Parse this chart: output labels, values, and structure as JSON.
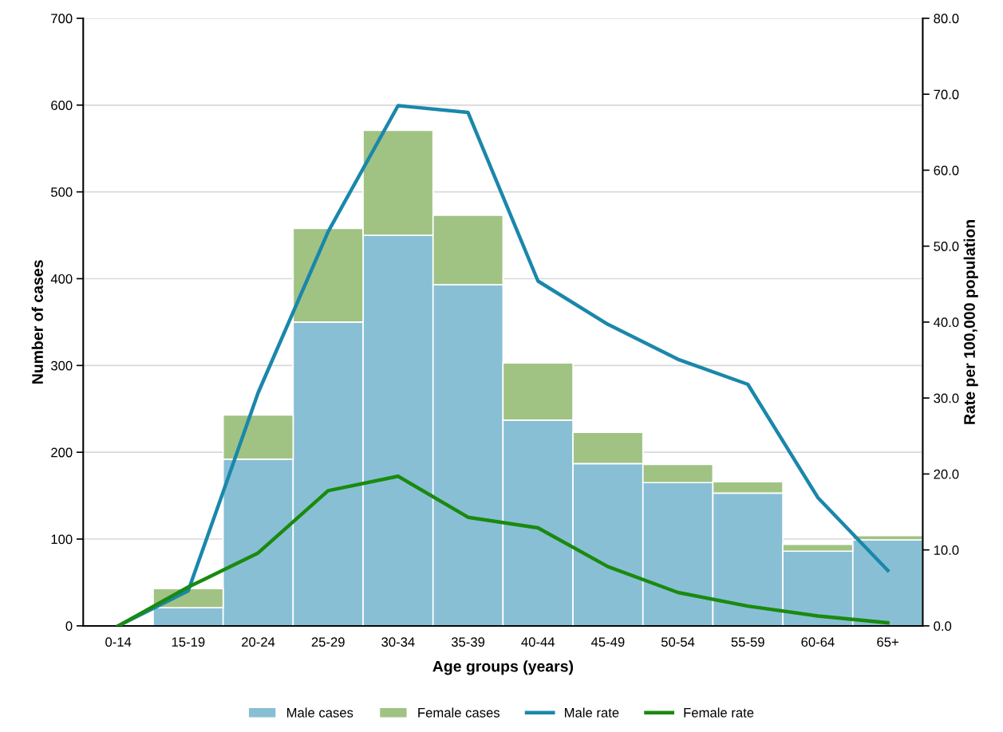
{
  "chart_data": {
    "type": "bar",
    "stacked": true,
    "xlabel": "Age groups (years)",
    "ylabel": "Number of cases",
    "y2label": "Rate per 100,000 population",
    "categories": [
      "0-14",
      "15-19",
      "20-24",
      "25-29",
      "30-34",
      "35-39",
      "40-44",
      "45-49",
      "50-54",
      "55-59",
      "60-64",
      "65+"
    ],
    "series": [
      {
        "name": "Male cases",
        "color": "#89bfd4",
        "values": [
          0,
          21,
          192,
          350,
          450,
          393,
          237,
          187,
          165,
          153,
          86,
          99
        ]
      },
      {
        "name": "Female cases",
        "color": "#a0c384",
        "values": [
          0,
          22,
          51,
          108,
          121,
          80,
          66,
          36,
          21,
          13,
          8,
          5
        ]
      },
      {
        "name": "Male rate",
        "type": "line",
        "axis": "y2",
        "color": "#1a87ab",
        "values": [
          0,
          4.6,
          30.7,
          51.9,
          68.5,
          67.6,
          45.4,
          39.7,
          35.1,
          31.8,
          16.9,
          7.3
        ]
      },
      {
        "name": "Female rate",
        "type": "line",
        "axis": "y2",
        "color": "#1a8a0f",
        "values": [
          0,
          5.1,
          9.6,
          17.8,
          19.7,
          14.3,
          12.9,
          7.8,
          4.4,
          2.6,
          1.3,
          0.4
        ]
      }
    ],
    "ylim": [
      0,
      700
    ],
    "yticks": [
      0,
      100,
      200,
      300,
      400,
      500,
      600,
      700
    ],
    "y2lim": [
      0,
      80
    ],
    "y2ticks": [
      {
        "value": 0,
        "label": "0.0"
      },
      {
        "value": 10,
        "label": "10.0"
      },
      {
        "value": 20,
        "label": "20.0"
      },
      {
        "value": 30,
        "label": "30.0"
      },
      {
        "value": 40,
        "label": "40.0"
      },
      {
        "value": 50,
        "label": "50.0"
      },
      {
        "value": 60,
        "label": "60.0"
      },
      {
        "value": 70,
        "label": "70.0"
      },
      {
        "value": 80,
        "label": "80.0"
      }
    ],
    "grid": "y",
    "legend": "bottom",
    "marker": "none",
    "line_style": "solid"
  }
}
